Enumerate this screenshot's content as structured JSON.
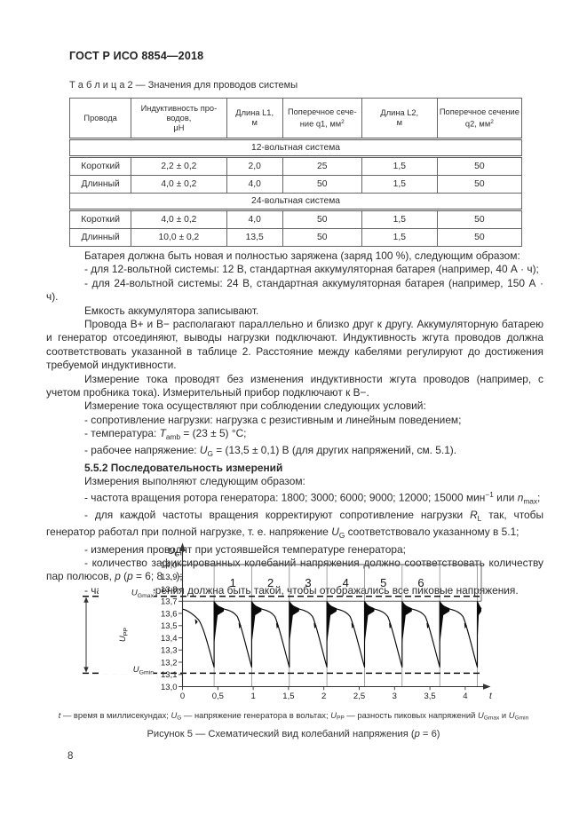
{
  "header": {
    "title": "ГОСТ Р ИСО 8854—2018"
  },
  "table": {
    "caption_runs": [
      {
        "t": "Т а б л и ц а   2 — Значения для проводов системы"
      }
    ],
    "col_widths_pct": [
      13.6,
      21.1,
      12.4,
      17.5,
      16.7,
      18.7
    ],
    "columns": [
      [
        {
          "t": "Провода"
        }
      ],
      [
        {
          "t": "Индуктивность про-\nводов,\nμН"
        }
      ],
      [
        {
          "t": "Длина L1,\nм"
        }
      ],
      [
        {
          "t": "Поперечное сече-\nние q1, мм"
        },
        {
          "t": "2",
          "s": "sup"
        }
      ],
      [
        {
          "t": "Длина L2,\nм"
        }
      ],
      [
        {
          "t": "Поперечное сечение\nq2, мм"
        },
        {
          "t": "2",
          "s": "sup"
        }
      ]
    ],
    "sections": [
      {
        "title": "12-вольтная система",
        "rows": [
          [
            "Короткий",
            "2,2 ± 0,2",
            "2,0",
            "25",
            "1,5",
            "50"
          ],
          [
            "Длинный",
            "4,0 ± 0,2",
            "4,0",
            "50",
            "1,5",
            "50"
          ]
        ]
      },
      {
        "title": "24-вольтная система",
        "rows": [
          [
            "Короткий",
            "4,0 ± 0,2",
            "4,0",
            "50",
            "1,5",
            "50"
          ],
          [
            "Длинный",
            "10,0 ± 0,2",
            "13,5",
            "50",
            "1,5",
            "50"
          ]
        ]
      }
    ]
  },
  "paragraphs": [
    {
      "runs": [
        {
          "t": "Батарея должна быть новая и полностью заряжена (заряд 100 %), следующим образом:"
        }
      ]
    },
    {
      "runs": [
        {
          "t": "- для 12-вольтной системы: 12 В, стандартная аккумуляторная батарея (например, 40 А · ч);"
        }
      ]
    },
    {
      "runs": [
        {
          "t": "- для 24-вольтной системы: 24 В, стандартная аккумуляторная батарея (например, 150 А · ч)."
        }
      ]
    },
    {
      "runs": [
        {
          "t": "Емкость аккумулятора записывают."
        }
      ]
    },
    {
      "runs": [
        {
          "t": "Провода В+ и В− располагают параллельно и близко друг к другу. Аккумуляторную батарею и генератор отсоединяют, выводы нагрузки подключают. Индуктивность жгута проводов должна соответствовать указанной в таблице 2. Расстояние между кабелями регулируют до достижения требуемой индуктивности."
        }
      ]
    },
    {
      "runs": [
        {
          "t": "Измерение тока проводят без изменения индуктивности жгута проводов (например, с учетом пробника тока). Измерительный прибор подключают к В−."
        }
      ]
    },
    {
      "runs": [
        {
          "t": "Измерение тока осуществляют при соблюдении следующих условий:"
        }
      ]
    },
    {
      "runs": [
        {
          "t": "- сопротивление нагрузки: нагрузка с резистивным и линейным поведением;"
        }
      ]
    },
    {
      "runs": [
        {
          "t": "- температура: "
        },
        {
          "t": "T",
          "i": true
        },
        {
          "t": "amb",
          "s": "sub"
        },
        {
          "t": " = (23 ± 5) °С;"
        }
      ]
    },
    {
      "runs": [
        {
          "t": "- рабочее напряжение: "
        },
        {
          "t": "U",
          "i": true
        },
        {
          "t": "G",
          "s": "sub"
        },
        {
          "t": " = (13,5 ± 0,1) В (для других напряжений, см. 5.1)."
        }
      ]
    },
    {
      "b": true,
      "runs": [
        {
          "t": "5.5.2 Последовательность измерений"
        }
      ]
    },
    {
      "runs": [
        {
          "t": "Измерения выполняют следующим образом:"
        }
      ]
    },
    {
      "runs": [
        {
          "t": "- частота вращения ротора генератора: 1800; 3000; 6000; 9000; 12000; 15000 мин"
        },
        {
          "t": "−1",
          "s": "sup"
        },
        {
          "t": " или "
        },
        {
          "t": "n",
          "i": true
        },
        {
          "t": "max",
          "s": "sub"
        },
        {
          "t": ";"
        }
      ]
    },
    {
      "runs": [
        {
          "t": "- для каждой частоты вращения корректируют сопротивление нагрузки "
        },
        {
          "t": "R",
          "i": true
        },
        {
          "t": "L",
          "s": "sub"
        },
        {
          "t": " так, чтобы генератор работал при полной нагрузке, т. е. напряжение "
        },
        {
          "t": "U",
          "i": true
        },
        {
          "t": "G",
          "s": "sub"
        },
        {
          "t": " соответствовало указанному в 5.1;"
        }
      ]
    },
    {
      "runs": [
        {
          "t": "- измерения проводят при устоявшейся температуре генератора;"
        }
      ]
    },
    {
      "runs": [
        {
          "t": "- количество зафиксированных колебаний напряжения должно соответствовать количеству пар полюсов, "
        },
        {
          "t": "p",
          "i": true
        },
        {
          "t": " ("
        },
        {
          "t": "p",
          "i": true
        },
        {
          "t": " = 6; 8 …);"
        }
      ]
    },
    {
      "runs": [
        {
          "t": "- частота измерения должна быть такой, чтобы отображались все пиковые напряжения."
        }
      ]
    }
  ],
  "chart_data": {
    "type": "line",
    "title": "Рисунок 5 — Схематический вид колебаний напряжения (p = 6)",
    "xlabel": "t",
    "ylabel": {
      "main": "U",
      "sub": "G"
    },
    "x_ticks": [
      {
        "v": 0,
        "label": "0"
      },
      {
        "v": 0.5,
        "label": "0,5"
      },
      {
        "v": 1,
        "label": "1"
      },
      {
        "v": 1.5,
        "label": "1,5"
      },
      {
        "v": 2,
        "label": "2"
      },
      {
        "v": 2.5,
        "label": "2,5"
      },
      {
        "v": 3,
        "label": "3"
      },
      {
        "v": 3.5,
        "label": "3,5"
      },
      {
        "v": 4,
        "label": "4"
      }
    ],
    "y_ticks": [
      {
        "v": 14.0,
        "label": "14,0"
      },
      {
        "v": 13.9,
        "label": "13,9"
      },
      {
        "v": 13.8,
        "label": "13,8"
      },
      {
        "v": 13.7,
        "label": "13,7"
      },
      {
        "v": 13.6,
        "label": "13,6"
      },
      {
        "v": 13.5,
        "label": "13,5"
      },
      {
        "v": 13.4,
        "label": "13,4"
      },
      {
        "v": 13.3,
        "label": "13,3"
      },
      {
        "v": 13.2,
        "label": "13,2"
      },
      {
        "v": 13.1,
        "label": "13,1"
      },
      {
        "v": 13.0,
        "label": "13,0"
      }
    ],
    "xlim": [
      0,
      4.23
    ],
    "ylim": [
      13.0,
      14.05
    ],
    "grid": "vertical lines at oscillation period boundaries; horizontal lines at 14,0 and 13,7",
    "u_gmax": {
      "label_main": "U",
      "label_sub": "Gmax",
      "value": 13.74
    },
    "u_gmin": {
      "label_main": "U",
      "label_sub": "Gmin",
      "value": 13.11
    },
    "u_pp": {
      "label_main": "U",
      "label_sub": "PP"
    },
    "oscillation_labels": [
      "1",
      "2",
      "3",
      "4",
      "5",
      "6"
    ],
    "waveform": {
      "first_rise_ms": 0.447,
      "period_ms": 0.532,
      "n_rises": 8,
      "peak_v": 13.7,
      "trough_v": 13.16,
      "envelope_v": 13.63,
      "start_v": 13.635,
      "band_bottom_v": 13.7
    }
  },
  "figure": {
    "legend_runs": [
      {
        "t": "t",
        "i": true
      },
      {
        "t": " — время в миллисекундах; "
      },
      {
        "t": "U",
        "i": true
      },
      {
        "t": "G",
        "s": "sub"
      },
      {
        "t": " — напряжение генератора в вольтах; "
      },
      {
        "t": "U",
        "i": true
      },
      {
        "t": "PP",
        "s": "sub"
      },
      {
        "t": " — разность пиковых напряжений "
      },
      {
        "t": "U",
        "i": true
      },
      {
        "t": "Gmax",
        "s": "sub"
      },
      {
        "t": " и "
      },
      {
        "t": "U",
        "i": true
      },
      {
        "t": "Gmin",
        "s": "sub"
      }
    ],
    "caption_runs": [
      {
        "t": "Рисунок 5 — Схематический вид колебаний напряжения ("
      },
      {
        "t": "p",
        "i": true
      },
      {
        "t": " = 6)"
      }
    ]
  },
  "footer": {
    "page_number": "8"
  }
}
